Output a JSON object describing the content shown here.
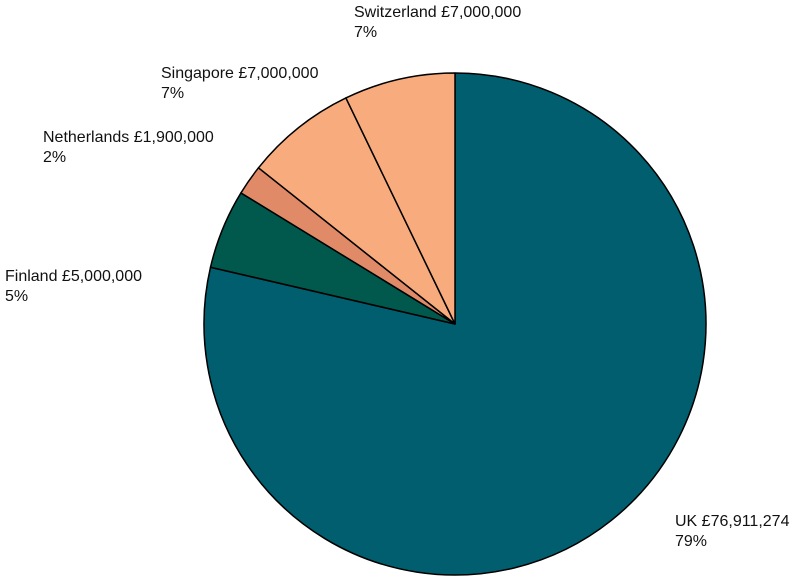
{
  "chart_data": {
    "type": "pie",
    "title": "",
    "slices": [
      {
        "label": "UK",
        "amount": "£76,911,274",
        "value": 76911274,
        "percent": "79%",
        "color": "#005E6E"
      },
      {
        "label": "Finland",
        "amount": "£5,000,000",
        "value": 5000000,
        "percent": "5%",
        "color": "#00594C"
      },
      {
        "label": "Netherlands",
        "amount": "£1,900,000",
        "value": 1900000,
        "percent": "2%",
        "color": "#E08A68"
      },
      {
        "label": "Singapore",
        "amount": "£7,000,000",
        "value": 7000000,
        "percent": "7%",
        "color": "#F8AC7E"
      },
      {
        "label": "Switzerland",
        "amount": "£7,000,000",
        "value": 7000000,
        "percent": "7%",
        "color": "#F8AC7E"
      }
    ],
    "start_angle": "12 o'clock",
    "direction": "clockwise",
    "slice_border_color": "#000000",
    "legend": "none (labels beside slices)"
  }
}
